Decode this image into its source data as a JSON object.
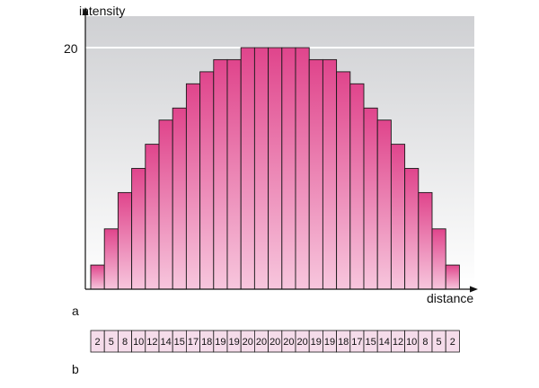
{
  "chart_data": {
    "type": "bar",
    "ylabel": "intensity",
    "xlabel": "distance",
    "yticks": [
      20
    ],
    "ylim": [
      0,
      22
    ],
    "values": [
      2,
      5,
      8,
      10,
      12,
      14,
      15,
      17,
      18,
      19,
      19,
      20,
      20,
      20,
      20,
      20,
      19,
      19,
      18,
      17,
      15,
      14,
      12,
      10,
      8,
      5,
      2
    ],
    "grid": false
  },
  "panel_labels": {
    "a": "a",
    "b": "b"
  },
  "colors": {
    "bar_top": "#e0458c",
    "bar_bottom": "#f7c6dd",
    "bar_stroke": "#1a1a1a",
    "band_top": "#cfd0d3",
    "band_bottom": "#ffffff",
    "cell_fill": "#f5dcea"
  }
}
